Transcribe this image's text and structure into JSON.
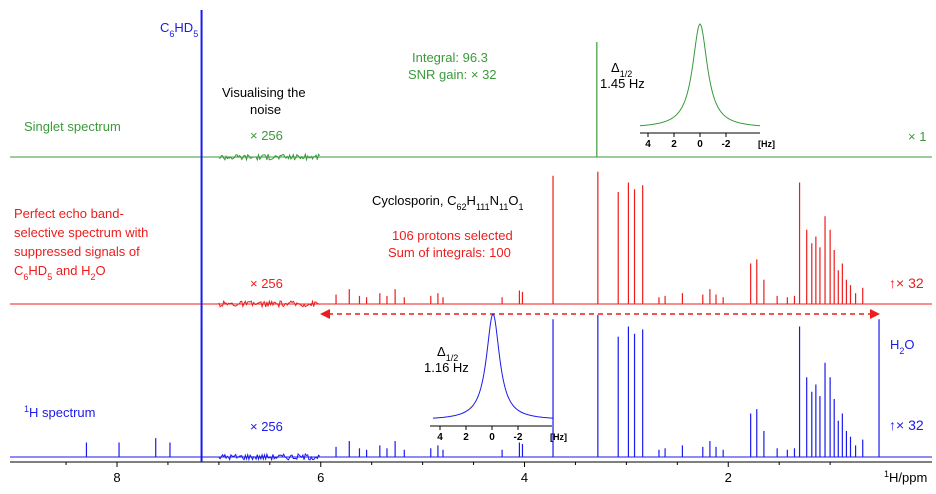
{
  "chart_data": {
    "type": "line",
    "title": "",
    "xlabel_main": "H/ppm",
    "xlabel_sup": "1",
    "xlim": [
      8.7,
      0.9
    ],
    "x_ticks": [
      8,
      6,
      4,
      2
    ],
    "grid": false,
    "colors": {
      "green": "#3a9a3a",
      "red": "#ee1c1c",
      "blue": "#1a1aee",
      "black": "#000000"
    },
    "series": [
      {
        "key": "singlet",
        "color": "#3a9a3a",
        "label": "Singlet spectrum",
        "scale": "× 1",
        "noise_label": "× 256",
        "noise_range_ppm": [
          7.0,
          6.0
        ],
        "peaks": [
          {
            "x": 3.29,
            "h": 1.0
          }
        ],
        "info": [
          "Integral: 96.3",
          "SNR gain: × 32"
        ]
      },
      {
        "key": "echo",
        "color": "#ee1c1c",
        "label_lines": [
          "Perfect echo band-",
          "selective spectrum  with",
          "suppressed signals of",
          "C6HD5 and H2O"
        ],
        "scale": "× 32",
        "noise_label": "× 256",
        "noise_range_ppm": [
          7.0,
          6.0
        ],
        "info": [
          "106 protons selected",
          "Sum of integrals: 100"
        ],
        "peaks": [
          {
            "x": 5.85,
            "h": 0.07
          },
          {
            "x": 5.72,
            "h": 0.11
          },
          {
            "x": 5.62,
            "h": 0.06
          },
          {
            "x": 5.55,
            "h": 0.05
          },
          {
            "x": 5.42,
            "h": 0.08
          },
          {
            "x": 5.35,
            "h": 0.06
          },
          {
            "x": 5.27,
            "h": 0.11
          },
          {
            "x": 5.18,
            "h": 0.05
          },
          {
            "x": 4.92,
            "h": 0.06
          },
          {
            "x": 4.85,
            "h": 0.08
          },
          {
            "x": 4.8,
            "h": 0.05
          },
          {
            "x": 4.22,
            "h": 0.05
          },
          {
            "x": 4.05,
            "h": 0.1
          },
          {
            "x": 4.02,
            "h": 0.09
          },
          {
            "x": 3.72,
            "h": 0.95
          },
          {
            "x": 3.28,
            "h": 0.98
          },
          {
            "x": 3.08,
            "h": 0.83
          },
          {
            "x": 2.98,
            "h": 0.9
          },
          {
            "x": 2.92,
            "h": 0.85
          },
          {
            "x": 2.84,
            "h": 0.88
          },
          {
            "x": 2.68,
            "h": 0.05
          },
          {
            "x": 2.62,
            "h": 0.06
          },
          {
            "x": 2.45,
            "h": 0.08
          },
          {
            "x": 2.25,
            "h": 0.07
          },
          {
            "x": 2.18,
            "h": 0.11
          },
          {
            "x": 2.12,
            "h": 0.07
          },
          {
            "x": 2.05,
            "h": 0.05
          },
          {
            "x": 1.78,
            "h": 0.3
          },
          {
            "x": 1.72,
            "h": 0.33
          },
          {
            "x": 1.65,
            "h": 0.18
          },
          {
            "x": 1.52,
            "h": 0.06
          },
          {
            "x": 1.42,
            "h": 0.05
          },
          {
            "x": 1.35,
            "h": 0.06
          },
          {
            "x": 1.3,
            "h": 0.9
          },
          {
            "x": 1.23,
            "h": 0.55
          },
          {
            "x": 1.18,
            "h": 0.45
          },
          {
            "x": 1.14,
            "h": 0.5
          },
          {
            "x": 1.1,
            "h": 0.42
          },
          {
            "x": 1.05,
            "h": 0.65
          },
          {
            "x": 1.0,
            "h": 0.55
          },
          {
            "x": 0.96,
            "h": 0.4
          },
          {
            "x": 0.92,
            "h": 0.25
          },
          {
            "x": 0.88,
            "h": 0.3
          },
          {
            "x": 0.84,
            "h": 0.18
          },
          {
            "x": 0.8,
            "h": 0.14
          },
          {
            "x": 0.75,
            "h": 0.08
          },
          {
            "x": 0.68,
            "h": 0.12
          }
        ]
      },
      {
        "key": "proton",
        "color": "#1a1aee",
        "label_sup": "1",
        "label": "H spectrum",
        "scale": "× 32",
        "noise_label": "× 256",
        "noise_range_ppm": [
          7.0,
          6.0
        ],
        "peaks": [
          {
            "x": 8.3,
            "h": 0.1
          },
          {
            "x": 7.98,
            "h": 0.1
          },
          {
            "x": 7.62,
            "h": 0.13
          },
          {
            "x": 7.48,
            "h": 0.1
          },
          {
            "x": 7.17,
            "h": 0.9
          },
          {
            "x": 5.85,
            "h": 0.07
          },
          {
            "x": 5.72,
            "h": 0.11
          },
          {
            "x": 5.62,
            "h": 0.06
          },
          {
            "x": 5.55,
            "h": 0.05
          },
          {
            "x": 5.42,
            "h": 0.08
          },
          {
            "x": 5.35,
            "h": 0.06
          },
          {
            "x": 5.27,
            "h": 0.11
          },
          {
            "x": 5.18,
            "h": 0.05
          },
          {
            "x": 4.92,
            "h": 0.06
          },
          {
            "x": 4.85,
            "h": 0.08
          },
          {
            "x": 4.8,
            "h": 0.05
          },
          {
            "x": 4.22,
            "h": 0.05
          },
          {
            "x": 4.05,
            "h": 0.1
          },
          {
            "x": 4.02,
            "h": 0.09
          },
          {
            "x": 3.72,
            "h": 0.95
          },
          {
            "x": 3.28,
            "h": 0.98
          },
          {
            "x": 3.08,
            "h": 0.83
          },
          {
            "x": 2.98,
            "h": 0.9
          },
          {
            "x": 2.92,
            "h": 0.85
          },
          {
            "x": 2.84,
            "h": 0.88
          },
          {
            "x": 2.68,
            "h": 0.05
          },
          {
            "x": 2.62,
            "h": 0.06
          },
          {
            "x": 2.45,
            "h": 0.08
          },
          {
            "x": 2.25,
            "h": 0.07
          },
          {
            "x": 2.18,
            "h": 0.11
          },
          {
            "x": 2.12,
            "h": 0.07
          },
          {
            "x": 2.05,
            "h": 0.05
          },
          {
            "x": 1.78,
            "h": 0.3
          },
          {
            "x": 1.72,
            "h": 0.33
          },
          {
            "x": 1.65,
            "h": 0.18
          },
          {
            "x": 1.52,
            "h": 0.06
          },
          {
            "x": 1.42,
            "h": 0.05
          },
          {
            "x": 1.35,
            "h": 0.06
          },
          {
            "x": 1.3,
            "h": 0.9
          },
          {
            "x": 1.23,
            "h": 0.55
          },
          {
            "x": 1.18,
            "h": 0.45
          },
          {
            "x": 1.14,
            "h": 0.5
          },
          {
            "x": 1.1,
            "h": 0.42
          },
          {
            "x": 1.05,
            "h": 0.65
          },
          {
            "x": 1.0,
            "h": 0.55
          },
          {
            "x": 0.96,
            "h": 0.4
          },
          {
            "x": 0.92,
            "h": 0.25
          },
          {
            "x": 0.88,
            "h": 0.3
          },
          {
            "x": 0.84,
            "h": 0.18
          },
          {
            "x": 0.8,
            "h": 0.14
          },
          {
            "x": 0.75,
            "h": 0.08
          },
          {
            "x": 0.68,
            "h": 0.12
          },
          {
            "x": 0.52,
            "h": 0.95
          }
        ]
      }
    ],
    "solvent_line": {
      "ppm": 7.17
    },
    "insets": [
      {
        "key": "green",
        "color": "#3a9a3a",
        "width_label": "1.45 Hz",
        "ticks": [
          "4",
          "2",
          "0",
          "-2"
        ],
        "unit": "[Hz]"
      },
      {
        "key": "blue",
        "color": "#1a1aee",
        "width_label": "1.16 Hz",
        "ticks": [
          "4",
          "2",
          "0",
          "-2"
        ],
        "unit": "[Hz]"
      }
    ],
    "annotations": {
      "c6hd5_main": "C",
      "c6hd5_sub1": "6",
      "c6hd5_h": "HD",
      "c6hd5_sub2": "5",
      "visualising": [
        "Visualising the",
        "noise"
      ],
      "cyclo_main": "Cyclosporin, C",
      "cyclo_s1": "62",
      "cyclo_h": "H",
      "cyclo_s2": "111",
      "cyclo_n": "N",
      "cyclo_s3": "11",
      "cyclo_o": "O",
      "cyclo_s4": "1",
      "h2o_h": "H",
      "h2o_sub": "2",
      "h2o_o": "O",
      "delta": "Δ",
      "delta_sub": "1/2",
      "arrow_glyph": "↑"
    }
  }
}
